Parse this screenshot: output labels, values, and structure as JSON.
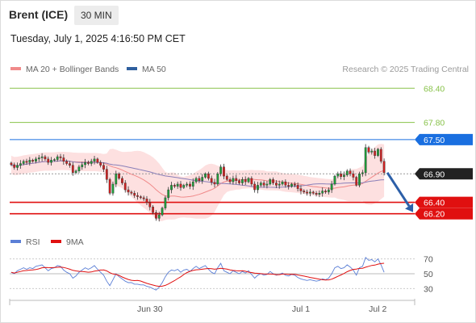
{
  "header": {
    "instrument": "Brent (ICE)",
    "timeframe": "30 MIN",
    "datetime": "Tuesday, July 1, 2025 4:16:50 PM CET"
  },
  "legend": {
    "ma20": {
      "label": "MA 20 + Bollinger Bands",
      "color": "#f08a8a"
    },
    "ma50": {
      "label": "MA 50",
      "color": "#2f5f9e"
    },
    "credit": "Research © 2025 Trading Central"
  },
  "rsi_legend": {
    "rsi": {
      "label": "RSI",
      "color": "#5b7fd6"
    },
    "ma9": {
      "label": "9MA",
      "color": "#e01010"
    }
  },
  "colors": {
    "up": "#1e9e3a",
    "down": "#d22020",
    "resistance": "#88c24a",
    "pivot": "#1a6fe0",
    "support": "#e01010",
    "last": "#222222",
    "band_fill": "#fde0e0",
    "forecast_arrow": "#2c5fa8"
  },
  "chart_data": [
    {
      "type": "candlestick",
      "title": "",
      "x_ticks": [
        "Jun 30",
        "Jul 1",
        "Jul 2"
      ],
      "ylim": [
        66.04,
        68.56
      ],
      "levels": [
        {
          "label": "68.40",
          "value": 68.4,
          "kind": "resistance"
        },
        {
          "label": "67.80",
          "value": 67.8,
          "kind": "resistance"
        },
        {
          "label": "67.50",
          "value": 67.5,
          "kind": "pivot"
        },
        {
          "label": "66.90",
          "value": 66.9,
          "kind": "last"
        },
        {
          "label": "66.40",
          "value": 66.4,
          "kind": "support"
        },
        {
          "label": "66.20",
          "value": 66.2,
          "kind": "support"
        }
      ],
      "forecast": {
        "direction": "down",
        "from": 66.92,
        "to": 66.2
      },
      "close": [
        67.06,
        67.01,
        67.05,
        67.08,
        67.12,
        67.1,
        67.14,
        67.12,
        67.16,
        67.18,
        67.2,
        67.16,
        67.1,
        67.14,
        67.15,
        67.2,
        67.18,
        67.12,
        67.08,
        67.05,
        66.92,
        66.95,
        67.02,
        67.06,
        67.1,
        67.08,
        67.12,
        67.16,
        67.1,
        67.05,
        66.98,
        66.8,
        66.56,
        66.72,
        66.9,
        66.82,
        66.74,
        66.62,
        66.58,
        66.56,
        66.52,
        66.5,
        66.48,
        66.46,
        66.4,
        66.32,
        66.22,
        66.12,
        66.18,
        66.3,
        66.48,
        66.62,
        66.7,
        66.68,
        66.72,
        66.66,
        66.7,
        66.72,
        66.68,
        66.76,
        66.82,
        66.78,
        66.84,
        66.9,
        66.82,
        66.75,
        66.72,
        66.9,
        67.02,
        66.86,
        66.8,
        66.76,
        66.82,
        66.78,
        66.74,
        66.8,
        66.76,
        66.82,
        66.72,
        66.62,
        66.7,
        66.74,
        66.7,
        66.72,
        66.8,
        66.74,
        66.7,
        66.72,
        66.76,
        66.7,
        66.68,
        66.72,
        66.7,
        66.64,
        66.6,
        66.58,
        66.56,
        66.58,
        66.56,
        66.54,
        66.56,
        66.6,
        66.58,
        66.62,
        66.72,
        66.86,
        66.9,
        66.85,
        66.88,
        66.95,
        66.9,
        66.84,
        66.7,
        66.9,
        66.92,
        67.36,
        67.28,
        67.3,
        67.22,
        67.33,
        67.12,
        66.92
      ],
      "rsi": {
        "levels": [
          70,
          50,
          30
        ],
        "values": [
          52,
          50,
          54,
          56,
          58,
          56,
          58,
          57,
          60,
          61,
          62,
          58,
          54,
          57,
          58,
          61,
          60,
          55,
          52,
          50,
          44,
          47,
          52,
          55,
          58,
          56,
          58,
          61,
          56,
          52,
          48,
          40,
          34,
          42,
          50,
          46,
          43,
          40,
          38,
          38,
          36,
          36,
          35,
          35,
          33,
          32,
          30,
          28,
          32,
          38,
          46,
          52,
          55,
          54,
          56,
          52,
          55,
          56,
          53,
          57,
          60,
          57,
          59,
          61,
          56,
          52,
          50,
          58,
          64,
          54,
          52,
          50,
          54,
          52,
          50,
          53,
          51,
          54,
          49,
          44,
          48,
          50,
          48,
          49,
          53,
          50,
          48,
          49,
          51,
          48,
          47,
          49,
          48,
          45,
          43,
          42,
          41,
          42,
          41,
          40,
          41,
          43,
          42,
          44,
          50,
          58,
          60,
          57,
          58,
          62,
          59,
          55,
          48,
          58,
          60,
          72,
          68,
          69,
          66,
          70,
          62,
          52
        ]
      }
    }
  ]
}
